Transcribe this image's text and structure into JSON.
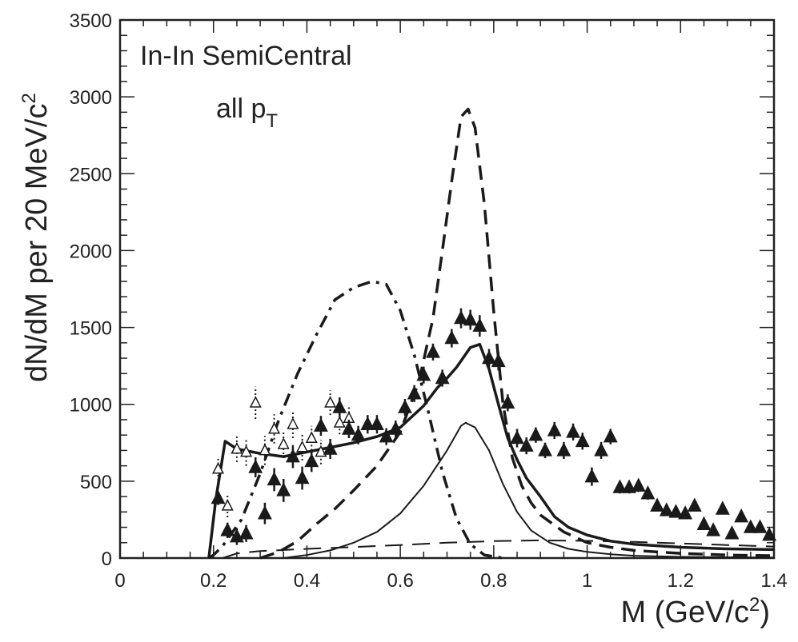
{
  "chart_data": {
    "type": "scatter",
    "title": "",
    "annotations": [
      "In-In SemiCentral",
      "all p",
      "T"
    ],
    "xlabel": {
      "text": "M (GeV/c",
      "sup": "2",
      "close": ")"
    },
    "ylabel": {
      "text": "dN/dM per 20 MeV/c",
      "sup": "2"
    },
    "xlim": [
      0,
      1.4
    ],
    "ylim": [
      0,
      3500
    ],
    "xticks": [
      0,
      0.2,
      0.4,
      0.6,
      0.8,
      1,
      1.2,
      1.4
    ],
    "xtick_labels": [
      "0",
      "0.2",
      "0.4",
      "0.6",
      "0.8",
      "1",
      "1.2",
      "1.4"
    ],
    "yticks": [
      0,
      500,
      1000,
      1500,
      2000,
      2500,
      3000,
      3500
    ],
    "ytick_labels": [
      "0",
      "500",
      "1000",
      "1500",
      "2000",
      "2500",
      "3000",
      "3500"
    ],
    "colors": {
      "ink": "#1a1a1a",
      "frame": "#222222"
    },
    "series": [
      {
        "name": "data (filled triangles)",
        "marker": "filled-triangle",
        "points": [
          [
            0.21,
            390,
            90
          ],
          [
            0.23,
            180,
            100
          ],
          [
            0.25,
            140,
            110
          ],
          [
            0.27,
            160,
            110
          ],
          [
            0.29,
            590,
            130
          ],
          [
            0.31,
            290,
            140
          ],
          [
            0.33,
            510,
            150
          ],
          [
            0.35,
            440,
            150
          ],
          [
            0.37,
            660,
            150
          ],
          [
            0.39,
            520,
            150
          ],
          [
            0.41,
            630,
            140
          ],
          [
            0.43,
            860,
            130
          ],
          [
            0.45,
            710,
            130
          ],
          [
            0.47,
            980,
            130
          ],
          [
            0.49,
            840,
            120
          ],
          [
            0.51,
            800,
            120
          ],
          [
            0.53,
            870,
            120
          ],
          [
            0.55,
            870,
            120
          ],
          [
            0.57,
            790,
            110
          ],
          [
            0.59,
            840,
            110
          ],
          [
            0.61,
            980,
            110
          ],
          [
            0.63,
            1070,
            110
          ],
          [
            0.65,
            1190,
            110
          ],
          [
            0.67,
            1340,
            110
          ],
          [
            0.69,
            1170,
            110
          ],
          [
            0.71,
            1430,
            120
          ],
          [
            0.73,
            1560,
            130
          ],
          [
            0.75,
            1550,
            130
          ],
          [
            0.77,
            1510,
            140
          ],
          [
            0.79,
            1300,
            120
          ],
          [
            0.81,
            1280,
            120
          ],
          [
            0.83,
            1010,
            110
          ],
          [
            0.85,
            780,
            120
          ],
          [
            0.87,
            730,
            110
          ],
          [
            0.89,
            800,
            100
          ],
          [
            0.91,
            700,
            100
          ],
          [
            0.93,
            830,
            110
          ],
          [
            0.95,
            700,
            110
          ],
          [
            0.97,
            820,
            110
          ],
          [
            0.99,
            760,
            110
          ],
          [
            1.01,
            530,
            120
          ],
          [
            1.03,
            700,
            110
          ],
          [
            1.05,
            790,
            100
          ],
          [
            1.07,
            460,
            80
          ],
          [
            1.09,
            460,
            80
          ],
          [
            1.11,
            470,
            80
          ],
          [
            1.13,
            420,
            80
          ],
          [
            1.15,
            340,
            70
          ],
          [
            1.17,
            310,
            70
          ],
          [
            1.19,
            300,
            70
          ],
          [
            1.21,
            290,
            70
          ],
          [
            1.23,
            340,
            60
          ],
          [
            1.25,
            220,
            60
          ],
          [
            1.27,
            180,
            60
          ],
          [
            1.29,
            320,
            60
          ],
          [
            1.31,
            160,
            50
          ],
          [
            1.33,
            270,
            50
          ],
          [
            1.35,
            200,
            50
          ],
          [
            1.37,
            200,
            50
          ],
          [
            1.39,
            150,
            40
          ]
        ]
      },
      {
        "name": "data (open triangles)",
        "marker": "open-triangle",
        "points": [
          [
            0.21,
            580,
            150
          ],
          [
            0.23,
            340,
            150
          ],
          [
            0.25,
            710,
            170
          ],
          [
            0.27,
            690,
            180
          ],
          [
            0.29,
            1010,
            210
          ],
          [
            0.31,
            700,
            190
          ],
          [
            0.33,
            840,
            190
          ],
          [
            0.35,
            740,
            180
          ],
          [
            0.37,
            870,
            180
          ],
          [
            0.39,
            720,
            170
          ],
          [
            0.41,
            780,
            160
          ],
          [
            0.43,
            690,
            160
          ],
          [
            0.45,
            1010,
            160
          ],
          [
            0.47,
            880,
            150
          ],
          [
            0.49,
            910,
            140
          ]
        ]
      }
    ],
    "curves": [
      {
        "name": "total (thick solid)",
        "style": "solid-thick",
        "points": [
          [
            0.19,
            0
          ],
          [
            0.205,
            380
          ],
          [
            0.225,
            760
          ],
          [
            0.25,
            710
          ],
          [
            0.3,
            680
          ],
          [
            0.35,
            660
          ],
          [
            0.4,
            690
          ],
          [
            0.45,
            720
          ],
          [
            0.5,
            750
          ],
          [
            0.55,
            790
          ],
          [
            0.6,
            850
          ],
          [
            0.65,
            990
          ],
          [
            0.68,
            1110
          ],
          [
            0.7,
            1170
          ],
          [
            0.72,
            1240
          ],
          [
            0.75,
            1370
          ],
          [
            0.77,
            1390
          ],
          [
            0.79,
            1230
          ],
          [
            0.81,
            1000
          ],
          [
            0.83,
            780
          ],
          [
            0.85,
            640
          ],
          [
            0.87,
            520
          ],
          [
            0.89,
            440
          ],
          [
            0.9,
            400
          ],
          [
            0.93,
            270
          ],
          [
            0.96,
            200
          ],
          [
            1.0,
            150
          ],
          [
            1.05,
            110
          ],
          [
            1.1,
            90
          ],
          [
            1.2,
            70
          ],
          [
            1.3,
            60
          ],
          [
            1.4,
            55
          ]
        ]
      },
      {
        "name": "dashed peak",
        "style": "dashed-thick",
        "points": [
          [
            0.3,
            0
          ],
          [
            0.34,
            40
          ],
          [
            0.38,
            110
          ],
          [
            0.42,
            220
          ],
          [
            0.46,
            320
          ],
          [
            0.5,
            440
          ],
          [
            0.55,
            600
          ],
          [
            0.6,
            820
          ],
          [
            0.64,
            1150
          ],
          [
            0.67,
            1560
          ],
          [
            0.69,
            2000
          ],
          [
            0.71,
            2450
          ],
          [
            0.73,
            2870
          ],
          [
            0.745,
            2920
          ],
          [
            0.76,
            2800
          ],
          [
            0.78,
            2300
          ],
          [
            0.8,
            1600
          ],
          [
            0.82,
            1000
          ],
          [
            0.84,
            650
          ],
          [
            0.86,
            470
          ],
          [
            0.88,
            360
          ],
          [
            0.9,
            280
          ],
          [
            0.95,
            170
          ],
          [
            1.0,
            100
          ],
          [
            1.05,
            70
          ],
          [
            1.1,
            50
          ],
          [
            1.2,
            30
          ],
          [
            1.3,
            20
          ],
          [
            1.4,
            15
          ]
        ]
      },
      {
        "name": "dash-dot broad",
        "style": "dashdot",
        "points": [
          [
            0.19,
            0
          ],
          [
            0.2,
            20
          ],
          [
            0.22,
            80
          ],
          [
            0.26,
            250
          ],
          [
            0.3,
            550
          ],
          [
            0.34,
            900
          ],
          [
            0.38,
            1200
          ],
          [
            0.42,
            1450
          ],
          [
            0.46,
            1680
          ],
          [
            0.5,
            1760
          ],
          [
            0.54,
            1800
          ],
          [
            0.57,
            1780
          ],
          [
            0.6,
            1610
          ],
          [
            0.63,
            1320
          ],
          [
            0.66,
            950
          ],
          [
            0.69,
            560
          ],
          [
            0.72,
            260
          ],
          [
            0.75,
            90
          ],
          [
            0.78,
            20
          ],
          [
            0.82,
            0
          ]
        ]
      },
      {
        "name": "thin solid peak",
        "style": "solid-thin",
        "points": [
          [
            0.35,
            0
          ],
          [
            0.4,
            20
          ],
          [
            0.45,
            50
          ],
          [
            0.5,
            100
          ],
          [
            0.55,
            170
          ],
          [
            0.6,
            290
          ],
          [
            0.65,
            470
          ],
          [
            0.7,
            700
          ],
          [
            0.73,
            860
          ],
          [
            0.74,
            880
          ],
          [
            0.76,
            850
          ],
          [
            0.79,
            700
          ],
          [
            0.82,
            480
          ],
          [
            0.85,
            300
          ],
          [
            0.88,
            180
          ],
          [
            0.92,
            100
          ],
          [
            0.96,
            60
          ],
          [
            1.0,
            40
          ],
          [
            1.05,
            25
          ],
          [
            1.1,
            15
          ],
          [
            1.2,
            8
          ],
          [
            1.3,
            5
          ],
          [
            1.4,
            3
          ]
        ]
      },
      {
        "name": "flat long-dash",
        "style": "longdash",
        "points": [
          [
            0.22,
            0
          ],
          [
            0.25,
            30
          ],
          [
            0.3,
            45
          ],
          [
            0.4,
            60
          ],
          [
            0.5,
            72
          ],
          [
            0.6,
            85
          ],
          [
            0.7,
            100
          ],
          [
            0.8,
            110
          ],
          [
            0.9,
            115
          ],
          [
            1.0,
            112
          ],
          [
            1.1,
            105
          ],
          [
            1.2,
            95
          ],
          [
            1.3,
            85
          ],
          [
            1.4,
            75
          ]
        ]
      }
    ]
  }
}
